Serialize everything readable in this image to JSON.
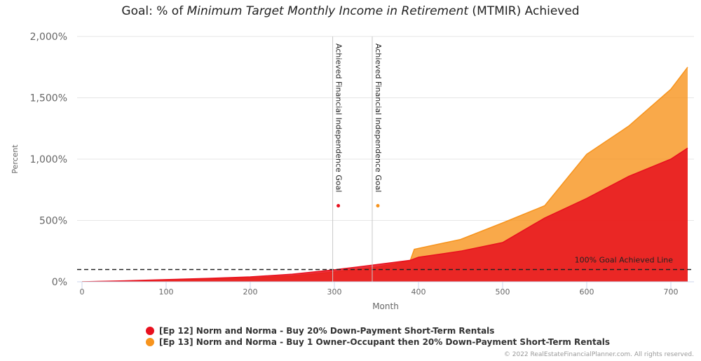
{
  "title": {
    "prefix": "Goal: % of ",
    "emphasis": "Minimum Target Monthly Income in Retirement",
    "suffix": " (MTMIR) Achieved"
  },
  "credits": "© 2022 RealEstateFinancialPlanner.com. All rights reserved.",
  "chart_data": {
    "type": "area",
    "xlabel": "Month",
    "ylabel": "Percent",
    "xlim": [
      0,
      725
    ],
    "ylim": [
      0,
      2000
    ],
    "x_ticks": [
      0,
      100,
      200,
      300,
      400,
      500,
      600,
      700
    ],
    "y_ticks": [
      0,
      500,
      1000,
      1500,
      2000
    ],
    "y_tick_labels": [
      "0%",
      "500%",
      "1,000%",
      "1,500%",
      "2,000%"
    ],
    "grid": "horizontal",
    "legend_position": "bottom",
    "series": [
      {
        "name": "[Ep 12] Norm and Norma - Buy 20% Down-Payment Short-Term Rentals",
        "color": "#e8101e",
        "x": [
          0,
          50,
          100,
          150,
          200,
          250,
          300,
          350,
          390,
          400,
          450,
          500,
          550,
          600,
          650,
          700,
          720
        ],
        "values": [
          0,
          8,
          18,
          28,
          40,
          62,
          98,
          140,
          175,
          200,
          250,
          320,
          520,
          680,
          860,
          1000,
          1090
        ]
      },
      {
        "name": "[Ep 13] Norm and Norma - Buy 1 Owner-Occupant then 20% Down-Payment Short-Term Rentals",
        "color": "#f7941d",
        "x": [
          0,
          50,
          100,
          150,
          200,
          250,
          300,
          350,
          390,
          395,
          450,
          500,
          550,
          600,
          650,
          700,
          720
        ],
        "values": [
          0,
          5,
          12,
          20,
          30,
          48,
          80,
          120,
          170,
          265,
          345,
          480,
          620,
          1040,
          1270,
          1570,
          1750
        ]
      }
    ],
    "plot_lines": [
      {
        "x": 298,
        "label": "Achieved Financial Independence Goal",
        "marker_y": 620,
        "marker_color": "#e8101e"
      },
      {
        "x": 345,
        "label": "Achieved Financial Independence Goal",
        "marker_y": 620,
        "marker_color": "#f7941d"
      }
    ],
    "goal_line": {
      "y": 100,
      "label": "100% Goal Achieved Line"
    }
  }
}
